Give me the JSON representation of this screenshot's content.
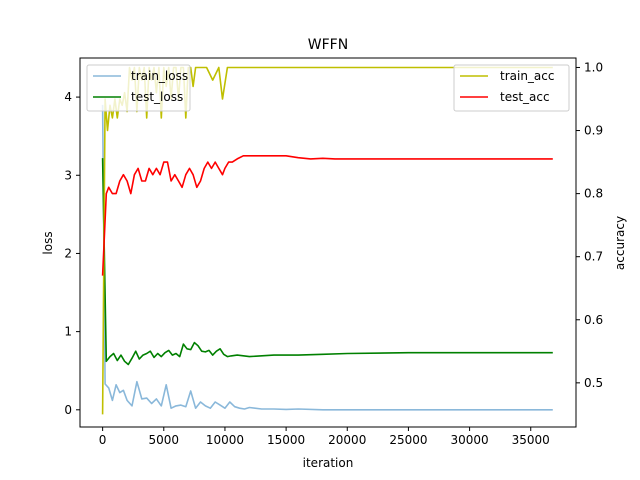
{
  "chart_data": {
    "type": "line",
    "title": "WFFN",
    "xlabel": "iteration",
    "ylabel_left": "loss",
    "ylabel_right": "accuracy",
    "xlim": [
      -1850,
      38700
    ],
    "ylim_left": [
      -0.22,
      4.5
    ],
    "ylim_right": [
      0.43,
      1.015
    ],
    "x_ticks": [
      0,
      5000,
      10000,
      15000,
      20000,
      25000,
      30000,
      35000
    ],
    "y_left_ticks": [
      0,
      1,
      2,
      3,
      4
    ],
    "y_right_ticks": [
      0.5,
      0.6,
      0.7,
      0.8,
      0.9,
      1.0
    ],
    "legend_left": {
      "placement": "upper-left",
      "entries": [
        "train_loss",
        "test_loss"
      ]
    },
    "legend_right": {
      "placement": "upper-right",
      "entries": [
        "train_acc",
        "test_acc"
      ]
    },
    "grid": false,
    "series": [
      {
        "name": "train_loss",
        "axis": "left",
        "color": "#8ab8da",
        "x": [
          0,
          200,
          500,
          800,
          1100,
          1400,
          1700,
          2000,
          2400,
          2800,
          3200,
          3600,
          4000,
          4400,
          4800,
          5200,
          5600,
          6000,
          6400,
          6800,
          7200,
          7600,
          8000,
          8400,
          8800,
          9200,
          9600,
          10000,
          10400,
          10800,
          11200,
          11600,
          12000,
          13000,
          14000,
          15000,
          16000,
          18000,
          20000,
          25000,
          30000,
          36800
        ],
        "values": [
          3.9,
          0.33,
          0.28,
          0.12,
          0.32,
          0.22,
          0.25,
          0.12,
          0.05,
          0.36,
          0.14,
          0.15,
          0.08,
          0.14,
          0.05,
          0.32,
          0.02,
          0.05,
          0.06,
          0.04,
          0.24,
          0.02,
          0.1,
          0.05,
          0.02,
          0.1,
          0.06,
          0.02,
          0.1,
          0.04,
          0.02,
          0.01,
          0.03,
          0.01,
          0.01,
          0.005,
          0.01,
          0.0,
          0.0,
          0.0,
          0.0,
          0.0
        ]
      },
      {
        "name": "test_loss",
        "axis": "left",
        "color": "#008000",
        "x": [
          0,
          300,
          600,
          900,
          1200,
          1500,
          1800,
          2100,
          2400,
          2700,
          3000,
          3300,
          3600,
          3900,
          4200,
          4500,
          4800,
          5100,
          5400,
          5700,
          6000,
          6300,
          6600,
          6900,
          7200,
          7500,
          7800,
          8100,
          8400,
          8700,
          9000,
          9300,
          9600,
          9900,
          10200,
          10500,
          11000,
          12000,
          14000,
          16000,
          18000,
          20000,
          25000,
          30000,
          36800
        ],
        "values": [
          3.22,
          0.62,
          0.68,
          0.72,
          0.63,
          0.7,
          0.62,
          0.58,
          0.66,
          0.75,
          0.65,
          0.7,
          0.72,
          0.75,
          0.67,
          0.72,
          0.68,
          0.73,
          0.76,
          0.7,
          0.72,
          0.68,
          0.84,
          0.78,
          0.77,
          0.86,
          0.82,
          0.75,
          0.74,
          0.76,
          0.7,
          0.75,
          0.78,
          0.71,
          0.68,
          0.69,
          0.7,
          0.68,
          0.7,
          0.7,
          0.71,
          0.72,
          0.73,
          0.73,
          0.73
        ]
      },
      {
        "name": "train_acc",
        "axis": "right",
        "color": "#bfbf00",
        "x": [
          0,
          200,
          400,
          600,
          800,
          1000,
          1200,
          1400,
          1600,
          1800,
          2000,
          2200,
          2400,
          2600,
          2800,
          3000,
          3200,
          3400,
          3600,
          3800,
          4000,
          4200,
          4400,
          4600,
          4800,
          5000,
          5200,
          5400,
          5600,
          5800,
          6000,
          6200,
          6400,
          6600,
          6800,
          7000,
          7200,
          7400,
          7600,
          7800,
          8000,
          8500,
          9000,
          9500,
          9800,
          10200,
          11000,
          15000,
          20000,
          25000,
          30000,
          36800
        ],
        "values": [
          0.45,
          0.95,
          0.9,
          0.94,
          0.92,
          0.95,
          0.92,
          0.95,
          0.94,
          0.96,
          0.93,
          1.0,
          0.98,
          1.0,
          0.93,
          1.0,
          0.98,
          1.0,
          0.92,
          1.0,
          0.98,
          1.0,
          0.96,
          1.0,
          0.92,
          1.0,
          0.97,
          1.0,
          0.95,
          1.0,
          1.0,
          0.95,
          1.0,
          1.0,
          0.92,
          1.0,
          1.0,
          0.97,
          1.0,
          1.0,
          1.0,
          1.0,
          0.98,
          1.0,
          0.95,
          1.0,
          1.0,
          1.0,
          1.0,
          1.0,
          1.0,
          1.0
        ]
      },
      {
        "name": "test_acc",
        "axis": "right",
        "color": "#ff0000",
        "x": [
          0,
          300,
          500,
          800,
          1100,
          1400,
          1700,
          2000,
          2300,
          2600,
          2900,
          3200,
          3500,
          3800,
          4100,
          4400,
          4700,
          5000,
          5300,
          5600,
          5900,
          6200,
          6500,
          6800,
          7100,
          7400,
          7700,
          8000,
          8300,
          8600,
          8900,
          9200,
          9500,
          9800,
          10000,
          10300,
          10600,
          11000,
          11500,
          12000,
          12500,
          13000,
          13500,
          14000,
          15000,
          16000,
          17000,
          18000,
          19000,
          20000,
          22000,
          25000,
          28000,
          30000,
          33000,
          36800
        ],
        "values": [
          0.67,
          0.8,
          0.81,
          0.8,
          0.8,
          0.82,
          0.83,
          0.82,
          0.8,
          0.83,
          0.84,
          0.82,
          0.82,
          0.84,
          0.83,
          0.84,
          0.83,
          0.85,
          0.85,
          0.82,
          0.83,
          0.82,
          0.81,
          0.83,
          0.84,
          0.83,
          0.81,
          0.82,
          0.84,
          0.85,
          0.84,
          0.85,
          0.84,
          0.83,
          0.84,
          0.85,
          0.85,
          0.855,
          0.86,
          0.86,
          0.86,
          0.86,
          0.86,
          0.86,
          0.86,
          0.857,
          0.855,
          0.856,
          0.855,
          0.855,
          0.855,
          0.855,
          0.855,
          0.855,
          0.855,
          0.855
        ]
      }
    ]
  }
}
